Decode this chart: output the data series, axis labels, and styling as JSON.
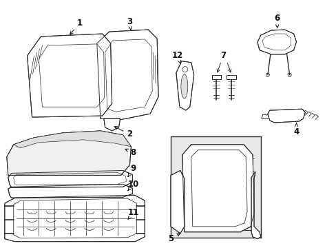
{
  "background_color": "#ffffff",
  "line_color": "#2a2a2a",
  "label_color": "#111111",
  "figsize": [
    4.89,
    3.6
  ],
  "dpi": 100,
  "label_fontsize": 8.5,
  "lw": 0.7
}
